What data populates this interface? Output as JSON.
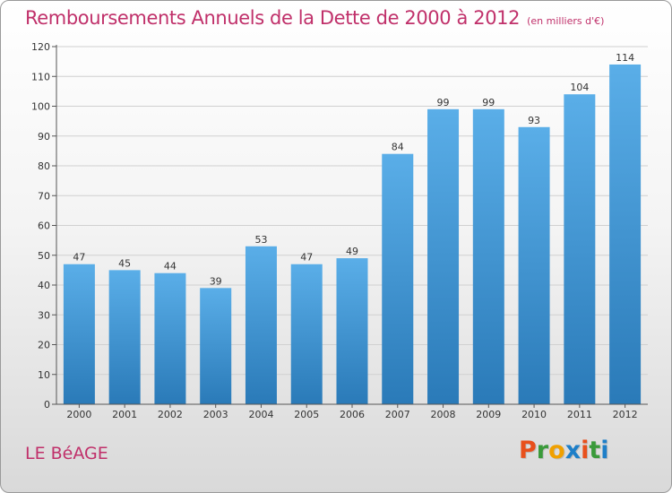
{
  "header": {
    "title": "Remboursements Annuels de la Dette de 2000 à 2012",
    "unit": "(en milliers d'€)"
  },
  "footer": {
    "commune": "LE BéAGE",
    "logo_letters": [
      "P",
      "r",
      "o",
      "x",
      "i",
      "t",
      "i"
    ]
  },
  "colors": {
    "title": "#c0306a",
    "bar_light": "#5aaee8",
    "bar_dark": "#2a7ab8",
    "grid": "#d0d0d0",
    "logo": [
      "#e8501c",
      "#3a9a3a",
      "#f0a000",
      "#1e7fc8",
      "#e8501c",
      "#3a9a3a",
      "#1e7fc8"
    ]
  },
  "chart_data": {
    "type": "bar",
    "title": "Remboursements Annuels de la Dette de 2000 à 2012",
    "xlabel": "",
    "ylabel": "",
    "ylim": [
      0,
      120
    ],
    "yticks": [
      0,
      10,
      20,
      30,
      40,
      50,
      60,
      70,
      80,
      90,
      100,
      110,
      120
    ],
    "grid": true,
    "categories": [
      "2000",
      "2001",
      "2002",
      "2003",
      "2004",
      "2005",
      "2006",
      "2007",
      "2008",
      "2009",
      "2010",
      "2011",
      "2012"
    ],
    "values": [
      47,
      45,
      44,
      39,
      53,
      47,
      49,
      84,
      99,
      99,
      93,
      104,
      114
    ]
  }
}
